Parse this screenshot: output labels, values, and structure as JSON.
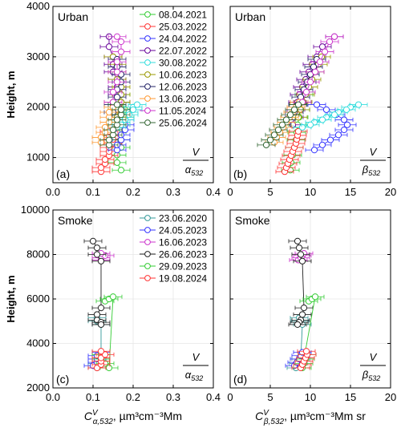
{
  "chart_data": [
    {
      "panel": "a",
      "type": "scatter",
      "title": "Urban",
      "panel_label": "(a)",
      "ratio_label": {
        "num": "V",
        "den": "α",
        "den_sub": "532"
      },
      "ylabel": "Height, m",
      "xlim": [
        0,
        0.4
      ],
      "ylim": [
        500,
        4000
      ],
      "xticks": [
        "0.0",
        "0.1",
        "0.2",
        "0.3",
        "0.4"
      ],
      "yticks": [
        "1000",
        "2000",
        "3000",
        "4000"
      ],
      "grid": true,
      "legend_position": "top-right",
      "series": [
        {
          "name": "08.04.2021",
          "color": "#33cc33",
          "x": [
            0.17,
            0.16,
            0.16,
            0.17,
            0.17,
            0.16,
            0.17,
            0.18,
            0.18,
            0.17,
            0.17
          ],
          "y": [
            750,
            900,
            1050,
            1200,
            1350,
            1500,
            1650,
            1800,
            1950,
            2100,
            2250
          ]
        },
        {
          "name": "25.03.2022",
          "color": "#ff3333",
          "x": [
            0.12,
            0.12,
            0.13,
            0.13,
            0.14,
            0.14,
            0.14,
            0.15,
            0.15,
            0.14,
            0.14
          ],
          "y": [
            720,
            800,
            880,
            960,
            1040,
            1120,
            1200,
            1280,
            1360,
            1440,
            1520
          ]
        },
        {
          "name": "24.04.2022",
          "color": "#3333ff",
          "x": [
            0.16,
            0.16,
            0.17,
            0.17,
            0.18,
            0.18,
            0.18,
            0.17,
            0.17,
            0.16
          ],
          "y": [
            1150,
            1250,
            1350,
            1450,
            1550,
            1650,
            1750,
            1850,
            1950,
            2050
          ]
        },
        {
          "name": "22.07.2022",
          "color": "#660099",
          "x": [
            0.14,
            0.14,
            0.15,
            0.15,
            0.15,
            0.16,
            0.16,
            0.16,
            0.17,
            0.17,
            0.16,
            0.17
          ],
          "y": [
            3400,
            3200,
            3000,
            2850,
            2700,
            2550,
            2400,
            2250,
            2100,
            1950,
            1800,
            1650
          ]
        },
        {
          "name": "30.08.2022",
          "color": "#33dddd",
          "x": [
            0.16,
            0.17,
            0.18,
            0.19,
            0.2,
            0.21,
            0.2,
            0.19,
            0.18,
            0.17
          ],
          "y": [
            1600,
            1700,
            1800,
            1900,
            2000,
            2050,
            1950,
            1850,
            1750,
            1650
          ]
        },
        {
          "name": "10.06.2023",
          "color": "#999900",
          "x": [
            0.16,
            0.16,
            0.17,
            0.17,
            0.17,
            0.16,
            0.16,
            0.16,
            0.15
          ],
          "y": [
            1800,
            1950,
            2100,
            2250,
            2400,
            2550,
            2700,
            2850,
            3000
          ]
        },
        {
          "name": "12.06.2023",
          "color": "#222266",
          "x": [
            0.15,
            0.15,
            0.16,
            0.16,
            0.17,
            0.17,
            0.16,
            0.16
          ],
          "y": [
            1900,
            2050,
            2200,
            2350,
            2500,
            2650,
            2800,
            2950
          ]
        },
        {
          "name": "13.06.2023",
          "color": "#ff9933",
          "x": [
            0.12,
            0.12,
            0.13,
            0.13,
            0.14,
            0.14,
            0.14,
            0.15,
            0.15
          ],
          "y": [
            1300,
            1400,
            1500,
            1600,
            1700,
            1800,
            1900,
            2000,
            2100
          ]
        },
        {
          "name": "11.05.2024",
          "color": "#cc33cc",
          "x": [
            0.15,
            0.15,
            0.16,
            0.16,
            0.16,
            0.17,
            0.17,
            0.16
          ],
          "y": [
            2100,
            2300,
            2500,
            2700,
            2900,
            3100,
            3300,
            3400
          ]
        },
        {
          "name": "25.06.2024",
          "color": "#336633",
          "x": [
            0.14,
            0.14,
            0.15,
            0.15,
            0.16,
            0.16,
            0.17,
            0.17,
            0.16
          ],
          "y": [
            1250,
            1350,
            1450,
            1550,
            1650,
            1750,
            1850,
            1950,
            2050
          ]
        }
      ]
    },
    {
      "panel": "b",
      "type": "scatter",
      "title": "Urban",
      "panel_label": "(b)",
      "ratio_label": {
        "num": "V",
        "den": "β",
        "den_sub": "532"
      },
      "xlim": [
        0,
        20
      ],
      "ylim": [
        500,
        4000
      ],
      "xticks": [
        "0",
        "5",
        "10",
        "15",
        "20"
      ],
      "yticks": [
        "1000",
        "2000",
        "3000",
        "4000"
      ],
      "grid": true,
      "series": [
        {
          "name": "08.04.2021",
          "color": "#33cc33",
          "x": [
            7.5,
            7.6,
            7.8,
            8.0,
            8.2,
            8.3,
            8.4,
            8.6,
            8.8,
            9.0,
            9.2
          ],
          "y": [
            750,
            900,
            1050,
            1200,
            1350,
            1500,
            1650,
            1800,
            1950,
            2100,
            2250
          ]
        },
        {
          "name": "25.03.2022",
          "color": "#ff3333",
          "x": [
            6.8,
            7.0,
            7.2,
            7.4,
            7.6,
            7.8,
            8.0,
            8.2,
            8.3,
            8.4,
            8.5
          ],
          "y": [
            720,
            800,
            880,
            960,
            1040,
            1120,
            1200,
            1280,
            1360,
            1440,
            1520
          ]
        },
        {
          "name": "24.04.2022",
          "color": "#3333ff",
          "x": [
            10.5,
            11.5,
            12.5,
            13.5,
            14.2,
            14.6,
            14.2,
            13.2,
            12.0,
            10.8
          ],
          "y": [
            1150,
            1250,
            1350,
            1450,
            1550,
            1650,
            1750,
            1850,
            1950,
            2050
          ]
        },
        {
          "name": "22.07.2022",
          "color": "#660099",
          "x": [
            13.0,
            11.5,
            10.8,
            10.2,
            9.8,
            9.4,
            9.0,
            8.6,
            8.4,
            8.2,
            8.0,
            7.8
          ],
          "y": [
            3400,
            3200,
            3000,
            2850,
            2700,
            2550,
            2400,
            2250,
            2100,
            1950,
            1800,
            1650
          ]
        },
        {
          "name": "30.08.2022",
          "color": "#33dddd",
          "x": [
            9.0,
            10.5,
            12.0,
            13.5,
            15.0,
            16.0,
            14.5,
            13.0,
            11.5,
            10.0
          ],
          "y": [
            1600,
            1700,
            1800,
            1900,
            2000,
            2050,
            1950,
            1850,
            1750,
            1650
          ]
        },
        {
          "name": "10.06.2023",
          "color": "#999900",
          "x": [
            8.5,
            8.8,
            9.1,
            9.4,
            9.8,
            10.2,
            10.6,
            11.0,
            11.4
          ],
          "y": [
            1800,
            1950,
            2100,
            2250,
            2400,
            2550,
            2700,
            2850,
            3000
          ]
        },
        {
          "name": "12.06.2023",
          "color": "#222266",
          "x": [
            8.0,
            8.4,
            8.8,
            9.2,
            9.6,
            10.0,
            10.4,
            10.8
          ],
          "y": [
            1900,
            2050,
            2200,
            2350,
            2500,
            2650,
            2800,
            2950
          ]
        },
        {
          "name": "13.06.2023",
          "color": "#ff9933",
          "x": [
            5.5,
            5.8,
            6.2,
            6.6,
            7.0,
            7.4,
            7.8,
            8.2,
            8.6
          ],
          "y": [
            1300,
            1400,
            1500,
            1600,
            1700,
            1800,
            1900,
            2000,
            2100
          ]
        },
        {
          "name": "11.05.2024",
          "color": "#cc33cc",
          "x": [
            9.0,
            9.5,
            10.0,
            10.6,
            11.2,
            11.8,
            12.4,
            13.0
          ],
          "y": [
            2100,
            2300,
            2500,
            2700,
            2900,
            3100,
            3300,
            3400
          ]
        },
        {
          "name": "25.06.2024",
          "color": "#336633",
          "x": [
            4.5,
            5.0,
            5.5,
            6.0,
            6.5,
            7.0,
            7.5,
            8.0,
            8.5
          ],
          "y": [
            1250,
            1350,
            1450,
            1550,
            1650,
            1750,
            1850,
            1950,
            2050
          ]
        }
      ]
    },
    {
      "panel": "c",
      "type": "scatter",
      "title": "Smoke",
      "panel_label": "(c)",
      "ratio_label": {
        "num": "V",
        "den": "α",
        "den_sub": "532"
      },
      "ylabel": "Height, m",
      "xlabel": "Cᵛα,532, µm³cm⁻³Mm",
      "xlabel_parts": {
        "main": "C",
        "sup": "V",
        "sub": "α,532",
        "rest": ", µm³cm⁻³Mm"
      },
      "xlim": [
        0,
        0.4
      ],
      "ylim": [
        2000,
        10000
      ],
      "xticks": [
        "0.0",
        "0.1",
        "0.2",
        "0.3",
        "0.4"
      ],
      "yticks": [
        "2000",
        "4000",
        "6000",
        "8000",
        "10000"
      ],
      "grid": true,
      "legend_position": "top-right",
      "series": [
        {
          "name": "23.06.2020",
          "color": "#339999",
          "x": [
            0.11,
            0.11,
            0.12,
            0.12,
            0.11,
            0.11
          ],
          "y": [
            2900,
            3100,
            3300,
            4850,
            5000,
            5150
          ]
        },
        {
          "name": "24.05.2023",
          "color": "#3333ff",
          "x": [
            0.1,
            0.11,
            0.11,
            0.11,
            0.12
          ],
          "y": [
            3000,
            3150,
            3300,
            3450,
            3600
          ]
        },
        {
          "name": "16.06.2023",
          "color": "#cc33cc",
          "x": [
            0.12,
            0.12,
            0.13,
            0.12
          ],
          "y": [
            7750,
            7850,
            7950,
            8050
          ]
        },
        {
          "name": "26.06.2023",
          "color": "#222222",
          "x": [
            0.1,
            0.11,
            0.11,
            0.12,
            0.12,
            0.11,
            0.11,
            0.12,
            0.12
          ],
          "y": [
            8600,
            8300,
            8000,
            7700,
            5600,
            5300,
            5050,
            4950,
            4850
          ]
        },
        {
          "name": "29.09.2023",
          "color": "#33cc33",
          "x": [
            0.13,
            0.14,
            0.15,
            0.14,
            0.13,
            0.12,
            0.12
          ],
          "y": [
            5900,
            6000,
            6100,
            2900,
            3100,
            3300,
            3500
          ]
        },
        {
          "name": "19.08.2024",
          "color": "#ff3333",
          "x": [
            0.11,
            0.12,
            0.12,
            0.12,
            0.13,
            0.12
          ],
          "y": [
            2900,
            3050,
            3200,
            3350,
            3500,
            3650
          ]
        }
      ]
    },
    {
      "panel": "d",
      "type": "scatter",
      "title": "Smoke",
      "panel_label": "(d)",
      "ratio_label": {
        "num": "V",
        "den": "β",
        "den_sub": "532"
      },
      "xlabel": "Cᵛβ,532, µm³cm⁻³Mm sr",
      "xlabel_parts": {
        "main": "C",
        "sup": "V",
        "sub": "β,532",
        "rest": ", µm³cm⁻³Mm sr"
      },
      "xlim": [
        0,
        20
      ],
      "ylim": [
        2000,
        10000
      ],
      "xticks": [
        "0",
        "5",
        "10",
        "15",
        "20"
      ],
      "yticks": [
        "2000",
        "4000",
        "6000",
        "8000",
        "10000"
      ],
      "grid": true,
      "series": [
        {
          "name": "23.06.2020",
          "color": "#339999",
          "x": [
            8.2,
            8.5,
            8.8,
            9.0,
            8.7,
            8.6
          ],
          "y": [
            2900,
            3100,
            3300,
            4850,
            5000,
            5150
          ]
        },
        {
          "name": "24.05.2023",
          "color": "#3333ff",
          "x": [
            8.0,
            8.3,
            8.6,
            8.8,
            9.0
          ],
          "y": [
            3000,
            3150,
            3300,
            3450,
            3600
          ]
        },
        {
          "name": "16.06.2023",
          "color": "#cc33cc",
          "x": [
            8.5,
            8.8,
            9.0,
            9.2
          ],
          "y": [
            7750,
            7850,
            7950,
            8050
          ]
        },
        {
          "name": "26.06.2023",
          "color": "#222222",
          "x": [
            8.4,
            8.6,
            8.8,
            9.0,
            9.2,
            9.0,
            8.8,
            8.6,
            8.4
          ],
          "y": [
            8600,
            8300,
            8000,
            7700,
            5600,
            5300,
            5050,
            4950,
            4850
          ]
        },
        {
          "name": "29.09.2023",
          "color": "#33cc33",
          "x": [
            9.8,
            10.2,
            10.6,
            9.0,
            9.2,
            9.4,
            9.6
          ],
          "y": [
            5900,
            6000,
            6100,
            2900,
            3100,
            3300,
            3500
          ]
        },
        {
          "name": "19.08.2024",
          "color": "#ff3333",
          "x": [
            8.8,
            9.0,
            9.2,
            9.4,
            9.6,
            9.5
          ],
          "y": [
            2900,
            3050,
            3200,
            3350,
            3500,
            3650
          ]
        }
      ]
    }
  ]
}
